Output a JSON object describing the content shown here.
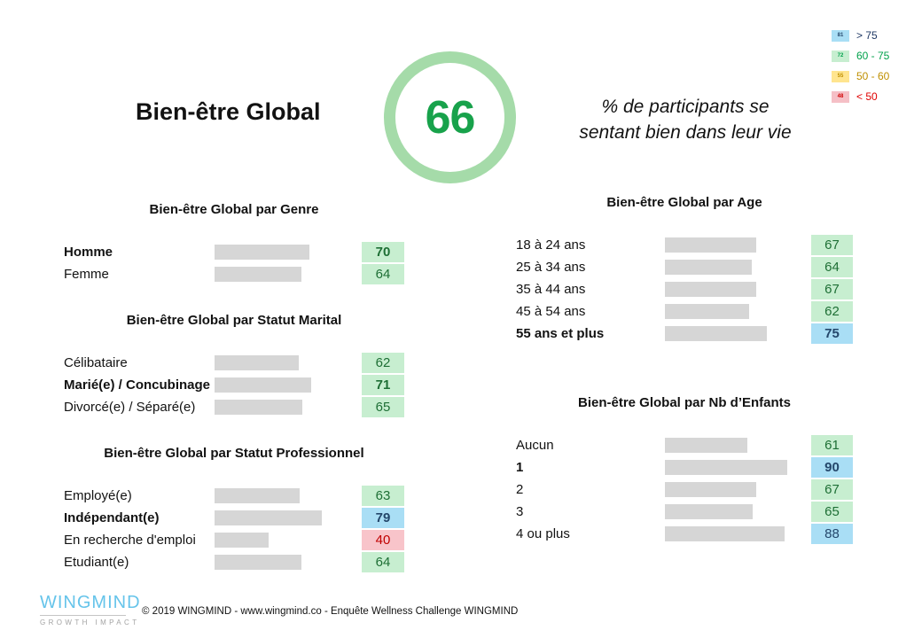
{
  "header": {
    "title": "Bien-être Global",
    "score": "66",
    "subtitle_line1": "% de participants se",
    "subtitle_line2": "sentant bien dans leur vie"
  },
  "legend": {
    "items": [
      {
        "chip": "81",
        "label": "> 75",
        "color": "blue"
      },
      {
        "chip": "72",
        "label": "60 - 75",
        "color": "green"
      },
      {
        "chip": "55",
        "label": "50 - 60",
        "color": "yellow"
      },
      {
        "chip": "48",
        "label": "< 50",
        "color": "red"
      }
    ]
  },
  "sections": [
    {
      "title": "Bien-être Global par Genre",
      "rows": [
        {
          "label": "Homme",
          "value": 70,
          "bold": true,
          "color": "green"
        },
        {
          "label": "Femme",
          "value": 64,
          "bold": false,
          "color": "green"
        }
      ]
    },
    {
      "title": "Bien-être Global par Statut Marital",
      "rows": [
        {
          "label": "Célibataire",
          "value": 62,
          "bold": false,
          "color": "green"
        },
        {
          "label": "Marié(e) / Concubinage",
          "value": 71,
          "bold": true,
          "color": "green"
        },
        {
          "label": "Divorcé(e) / Séparé(e)",
          "value": 65,
          "bold": false,
          "color": "green"
        }
      ]
    },
    {
      "title": "Bien-être Global par Statut Professionnel",
      "rows": [
        {
          "label": "Employé(e)",
          "value": 63,
          "bold": false,
          "color": "green"
        },
        {
          "label": "Indépendant(e)",
          "value": 79,
          "bold": true,
          "color": "blue"
        },
        {
          "label": "En recherche d'emploi",
          "value": 40,
          "bold": false,
          "color": "red"
        },
        {
          "label": "Etudiant(e)",
          "value": 64,
          "bold": false,
          "color": "green"
        }
      ]
    },
    {
      "title": "Bien-être Global par Age",
      "rows": [
        {
          "label": "18 à 24 ans",
          "value": 67,
          "bold": false,
          "color": "green"
        },
        {
          "label": "25 à 34 ans",
          "value": 64,
          "bold": false,
          "color": "green"
        },
        {
          "label": "35 à 44 ans",
          "value": 67,
          "bold": false,
          "color": "green"
        },
        {
          "label": "45 à 54 ans",
          "value": 62,
          "bold": false,
          "color": "green"
        },
        {
          "label": "55 ans et plus",
          "value": 75,
          "bold": true,
          "color": "blue"
        }
      ]
    },
    {
      "title": "Bien-être Global par Nb d’Enfants",
      "rows": [
        {
          "label": "Aucun",
          "value": 61,
          "bold": false,
          "color": "green"
        },
        {
          "label": "1",
          "value": 90,
          "bold": true,
          "color": "blue"
        },
        {
          "label": "2",
          "value": 67,
          "bold": false,
          "color": "green"
        },
        {
          "label": "3",
          "value": 65,
          "bold": false,
          "color": "green"
        },
        {
          "label": "4 ou plus",
          "value": 88,
          "bold": false,
          "color": "blue"
        }
      ]
    }
  ],
  "footer": {
    "logo_name": "WINGMIND",
    "logo_tagline": "GROWTH IMPACT",
    "copyright": "© 2019 WINGMIND -  www.wingmind.co  - Enquête Wellness Challenge WINGMIND"
  },
  "colors": {
    "score_green": "#18A24B",
    "ring_green": "#A5DBA9",
    "bar_gray": "#D6D6D6",
    "green_bg": "#C7EED0",
    "green_text": "#1E6F35",
    "blue_bg": "#A9DEF5",
    "blue_text": "#24476B",
    "red_bg": "#F8C4CA",
    "red_text": "#C00000",
    "yellow_bg": "#FFE58F",
    "yellow_text": "#BF8F00",
    "logo_blue": "#66C4EA"
  },
  "chart_data": [
    {
      "type": "bar",
      "orientation": "horizontal",
      "title": "Bien-être Global",
      "categories": [
        "Global"
      ],
      "values": [
        66
      ],
      "xlim": [
        0,
        100
      ],
      "note": "% de participants se sentant bien dans leur vie"
    },
    {
      "type": "bar",
      "orientation": "horizontal",
      "title": "Bien-être Global par Genre",
      "categories": [
        "Homme",
        "Femme"
      ],
      "values": [
        70,
        64
      ],
      "xlim": [
        0,
        100
      ]
    },
    {
      "type": "bar",
      "orientation": "horizontal",
      "title": "Bien-être Global par Statut Marital",
      "categories": [
        "Célibataire",
        "Marié(e) / Concubinage",
        "Divorcé(e) / Séparé(e)"
      ],
      "values": [
        62,
        71,
        65
      ],
      "xlim": [
        0,
        100
      ]
    },
    {
      "type": "bar",
      "orientation": "horizontal",
      "title": "Bien-être Global par Statut Professionnel",
      "categories": [
        "Employé(e)",
        "Indépendant(e)",
        "En recherche d'emploi",
        "Etudiant(e)"
      ],
      "values": [
        63,
        79,
        40,
        64
      ],
      "xlim": [
        0,
        100
      ]
    },
    {
      "type": "bar",
      "orientation": "horizontal",
      "title": "Bien-être Global par Age",
      "categories": [
        "18 à 24 ans",
        "25 à 34 ans",
        "35 à 44 ans",
        "45 à 54 ans",
        "55 ans et plus"
      ],
      "values": [
        67,
        64,
        67,
        62,
        75
      ],
      "xlim": [
        0,
        100
      ]
    },
    {
      "type": "bar",
      "orientation": "horizontal",
      "title": "Bien-être Global par Nb d’Enfants",
      "categories": [
        "Aucun",
        "1",
        "2",
        "3",
        "4 ou plus"
      ],
      "values": [
        61,
        90,
        67,
        65,
        88
      ],
      "xlim": [
        0,
        100
      ],
      "legend": {
        "position": "top-right",
        "entries": [
          "> 75 (bleu)",
          "60 - 75 (vert)",
          "50 - 60 (jaune)",
          "< 50 (rouge)"
        ]
      }
    }
  ]
}
